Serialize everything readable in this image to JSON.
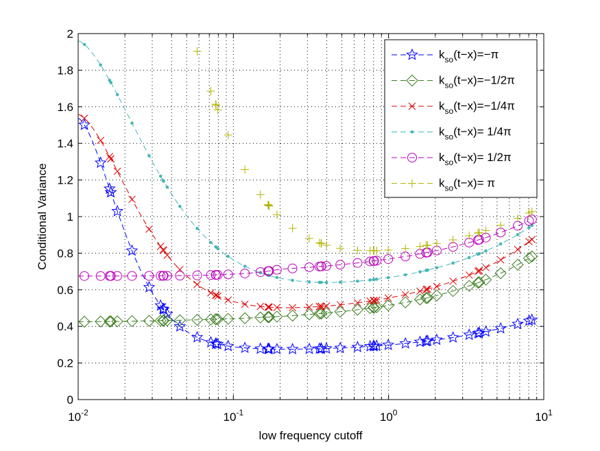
{
  "chart_data": {
    "type": "line",
    "title": "",
    "xlabel": "low frequency cutoff",
    "ylabel": "Conditional Variance",
    "xscale": "log",
    "xlim": [
      0.01,
      10
    ],
    "ylim": [
      0,
      2
    ],
    "grid": true,
    "legend_position": "top-right",
    "x_tick_labels": [
      {
        "base": "10",
        "exp": "-2"
      },
      {
        "base": "10",
        "exp": "-1"
      },
      {
        "base": "10",
        "exp": "0"
      },
      {
        "base": "10",
        "exp": "1"
      }
    ],
    "y_tick_labels": [
      "0",
      "0.2",
      "0.4",
      "0.6",
      "0.8",
      "1",
      "1.2",
      "1.4",
      "1.6",
      "1.8",
      "2"
    ],
    "colors": {
      "minus_pi": "#0000ff",
      "minus_half_pi": "#3a7d1f",
      "minus_quarter_pi": "#dd0000",
      "plus_quarter_pi": "#47b6b6",
      "plus_half_pi": "#bb00bb",
      "plus_pi": "#b3b300"
    },
    "series": [
      {
        "name": "k_so(t−x)=−π",
        "key": "minus_pi",
        "marker": "star",
        "legend": {
          "k": "k",
          "sub": "so",
          "rest": "(t−x)=−π"
        },
        "fn": {
          "type": "drop",
          "a": 1.84,
          "m": 0.255,
          "d": 9,
          "c": -0.045,
          "x0": 0.28,
          "w": 0.022,
          "sh": 0.7,
          "sd": 0.055
        }
      },
      {
        "name": "k_so(t−x)=−1/2π",
        "key": "minus_half_pi",
        "marker": "diamond",
        "legend": {
          "k": "k",
          "sub": "so",
          "rest": "(t−x)=−1/2π"
        },
        "fn": {
          "type": "flat",
          "m": 0.42,
          "c": 0.4,
          "x0": 0.6,
          "w": 0.14
        }
      },
      {
        "name": "k_so(t−x)=−1/4π",
        "key": "minus_quarter_pi",
        "marker": "x",
        "legend": {
          "k": "k",
          "sub": "so",
          "rest": "(t−x)=−1/4π"
        },
        "fn": {
          "type": "drop",
          "a": 1.84,
          "m": 0.455,
          "d": 6,
          "c": -0.048,
          "x0": 0.28,
          "w": 0.025
        }
      },
      {
        "name": "k_so(t−x)= 1/4π",
        "key": "plus_quarter_pi",
        "marker": "dot",
        "legend": {
          "k": "k",
          "sub": "so",
          "rest": "(t−x)= 1/4π"
        },
        "fn": {
          "type": "drop",
          "a": 3.3,
          "m": 0.59,
          "d": 4.5,
          "c": -0.04,
          "x0": 0.28,
          "w": 0.018
        }
      },
      {
        "name": "k_so(t−x)= 1/2π",
        "key": "plus_half_pi",
        "marker": "circle",
        "legend": {
          "k": "k",
          "sub": "so",
          "rest": "(t−x)= 1/2π"
        },
        "fn": {
          "type": "flat",
          "m": 0.68,
          "c": 0.3,
          "x0": 0.7,
          "w": 0.1
        }
      },
      {
        "name": "k_so(t−x)= π",
        "key": "plus_pi",
        "marker": "plus",
        "legend": {
          "k": "k",
          "sub": "so",
          "rest": "(t−x)= π"
        },
        "fn": {
          "type": "drop",
          "a": 6.7,
          "m": 0.75,
          "d": 3.8,
          "c": -0.015,
          "x0": 0.33,
          "w": 0.017
        }
      }
    ]
  }
}
